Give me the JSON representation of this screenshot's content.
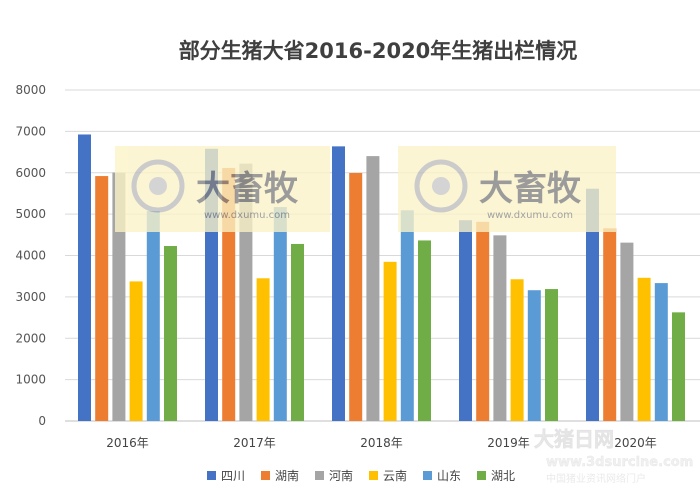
{
  "chart_data": {
    "type": "bar",
    "title": "部分生猪大省2016-2020年生猪出栏情况",
    "categories": [
      "2016年",
      "2017年",
      "2018年",
      "2019年",
      "2020年"
    ],
    "ylim": [
      0,
      8000
    ],
    "yticks": [
      0,
      1000,
      2000,
      3000,
      4000,
      5000,
      6000,
      7000,
      8000
    ],
    "grid": true,
    "legend_position": "bottom",
    "series": [
      {
        "name": "四川",
        "color": "#4472C4",
        "values": [
          6925,
          6579,
          6638,
          4853,
          5614
        ]
      },
      {
        "name": "湖南",
        "color": "#ED7D31",
        "values": [
          5920,
          6116,
          5994,
          4813,
          4658
        ]
      },
      {
        "name": "河南",
        "color": "#A5A5A5",
        "values": [
          6004,
          6220,
          6402,
          4487,
          4311
        ]
      },
      {
        "name": "云南",
        "color": "#FFC000",
        "values": [
          3374,
          3449,
          3847,
          3426,
          3461
        ]
      },
      {
        "name": "山东",
        "color": "#5B9BD5",
        "values": [
          5075,
          5171,
          5092,
          3161,
          3333
        ]
      },
      {
        "name": "湖北",
        "color": "#70AD47",
        "values": [
          4229,
          4279,
          4364,
          3189,
          2626
        ]
      }
    ]
  },
  "watermark": {
    "brand": "大畜牧",
    "site": "www.dxumu.com",
    "corner_brand": "大猪日网",
    "corner_site": "www.3dsurcine.com",
    "corner_tagline": "中国猪业资讯网络门户"
  }
}
